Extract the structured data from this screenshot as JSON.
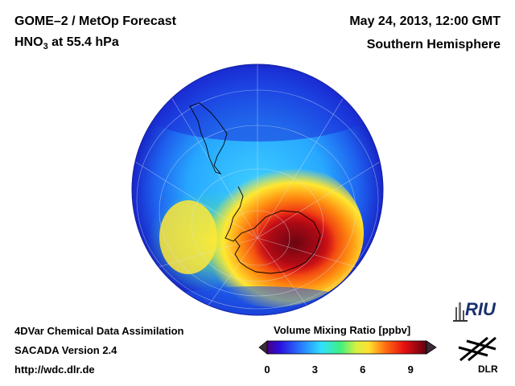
{
  "header": {
    "title": "GOME–2 / MetOp Forecast",
    "species_prefix": "HNO",
    "species_sub": "3",
    "species_suffix": " at 55.4 hPa",
    "datetime": "May 24, 2013, 12:00 GMT",
    "hemisphere": "Southern Hemisphere"
  },
  "footer": {
    "line1": "4DVar Chemical Data Assimilation",
    "line2": "SACADA Version 2.4",
    "line3": "http://wdc.dlr.de"
  },
  "colorbar": {
    "title": "Volume Mixing Ratio [ppbv]",
    "ticks": [
      "0",
      "3",
      "6",
      "9"
    ],
    "range": [
      0,
      10
    ]
  },
  "logos": {
    "riu": "RIU",
    "dlr": "DLR"
  },
  "colors": {
    "ocean_low": "#1b2ad9",
    "high": "#b80018",
    "coastline": "#000000"
  }
}
